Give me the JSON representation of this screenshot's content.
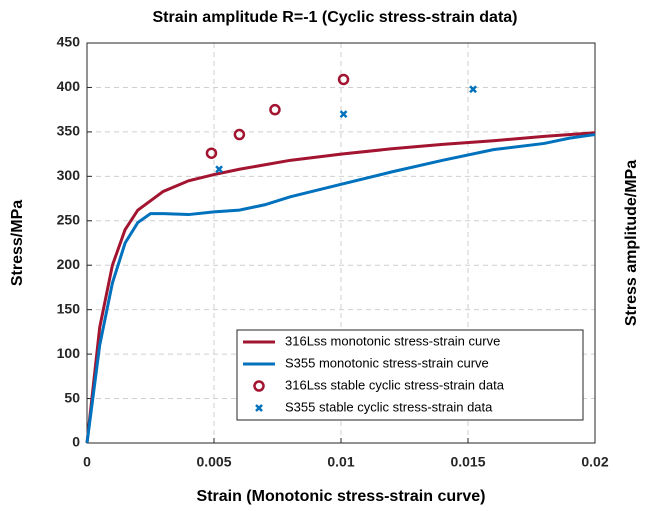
{
  "chart_data": {
    "type": "line",
    "title": "Strain amplitude R=-1 (Cyclic stress-strain data)",
    "x_label": "Strain (Monotonic stress-strain curve)",
    "y_label": "Stress/MPa",
    "y2_label": "Stress amplitude/MPa",
    "xlim": [
      0,
      0.02
    ],
    "xticks": [
      0,
      0.005,
      0.01,
      0.015,
      0.02
    ],
    "ylim": [
      0,
      450
    ],
    "yticks": [
      0,
      50,
      100,
      150,
      200,
      250,
      300,
      350,
      400,
      450
    ],
    "grid": true,
    "legend": "lower right",
    "series": [
      {
        "name": "316Lss monotonic stress-strain curve",
        "color": "#a2142f",
        "style": "line",
        "x": [
          0,
          0.0005,
          0.001,
          0.0015,
          0.002,
          0.003,
          0.004,
          0.005,
          0.006,
          0.008,
          0.01,
          0.012,
          0.014,
          0.016,
          0.018,
          0.02
        ],
        "values": [
          0,
          130,
          200,
          240,
          262,
          283,
          295,
          302,
          308,
          318,
          325,
          331,
          336,
          340,
          345,
          349
        ]
      },
      {
        "name": "S355 monotonic stress-strain curve",
        "color": "#0072bd",
        "style": "line",
        "x": [
          0,
          0.0005,
          0.001,
          0.0015,
          0.002,
          0.0025,
          0.003,
          0.004,
          0.005,
          0.006,
          0.007,
          0.008,
          0.009,
          0.01,
          0.012,
          0.014,
          0.016,
          0.018,
          0.019,
          0.02
        ],
        "values": [
          0,
          110,
          180,
          225,
          248,
          258,
          258,
          257,
          260,
          262,
          268,
          277,
          284,
          291,
          305,
          318,
          330,
          337,
          343,
          347
        ]
      },
      {
        "name": "316Lss stable cyclic stress-strain data",
        "color": "#a2142f",
        "style": "circle",
        "x": [
          0.0049,
          0.006,
          0.0074,
          0.0101
        ],
        "values": [
          326,
          347,
          375,
          409
        ]
      },
      {
        "name": "S355 stable cyclic stress-strain data",
        "color": "#0072bd",
        "style": "cross",
        "x": [
          0.0052,
          0.0101,
          0.0152
        ],
        "values": [
          308,
          370,
          398
        ]
      }
    ]
  }
}
